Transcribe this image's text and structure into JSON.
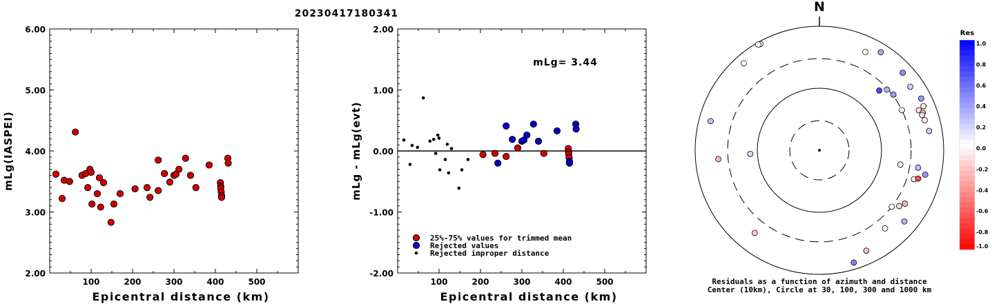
{
  "title": "20230417180341",
  "chart_data": [
    {
      "type": "scatter",
      "xlabel": "Epicentral distance (km)",
      "ylabel": "mLg(IASPEI)",
      "xlim": [
        0,
        600
      ],
      "ylim": [
        2.0,
        6.0
      ],
      "x_ticks": [
        "100",
        "200",
        "300",
        "400",
        "500"
      ],
      "y_ticks": [
        "2.00",
        "3.00",
        "4.00",
        "5.00",
        "6.00"
      ],
      "grid": false,
      "series": [
        {
          "color": "#d40000",
          "points": [
            [
              15,
              3.62
            ],
            [
              30,
              3.22
            ],
            [
              35,
              3.52
            ],
            [
              48,
              3.5
            ],
            [
              62,
              4.31
            ],
            [
              78,
              3.6
            ],
            [
              87,
              3.63
            ],
            [
              92,
              3.4
            ],
            [
              97,
              3.7
            ],
            [
              100,
              3.65
            ],
            [
              102,
              3.13
            ],
            [
              115,
              3.3
            ],
            [
              120,
              3.56
            ],
            [
              123,
              3.08
            ],
            [
              130,
              3.48
            ],
            [
              148,
              2.83
            ],
            [
              155,
              3.13
            ],
            [
              170,
              3.3
            ],
            [
              206,
              3.38
            ],
            [
              235,
              3.4
            ],
            [
              242,
              3.24
            ],
            [
              262,
              3.85
            ],
            [
              262,
              3.35
            ],
            [
              277,
              3.63
            ],
            [
              290,
              3.49
            ],
            [
              300,
              3.6
            ],
            [
              305,
              3.62
            ],
            [
              312,
              3.7
            ],
            [
              328,
              3.88
            ],
            [
              340,
              3.6
            ],
            [
              353,
              3.4
            ],
            [
              385,
              3.77
            ],
            [
              412,
              3.48
            ],
            [
              413,
              3.42
            ],
            [
              413,
              3.39
            ],
            [
              414,
              3.33
            ],
            [
              415,
              3.27
            ],
            [
              415,
              3.24
            ],
            [
              430,
              3.88
            ],
            [
              431,
              3.8
            ]
          ]
        }
      ]
    },
    {
      "type": "scatter",
      "xlabel": "Epicentral distance (km)",
      "ylabel": "mLg - mLg(evt)",
      "xlim": [
        0,
        600
      ],
      "ylim": [
        -2.0,
        2.0
      ],
      "x_ticks": [
        "100",
        "200",
        "300",
        "400",
        "500"
      ],
      "y_ticks": [
        "-2.00",
        "-1.00",
        "0.00",
        "1.00",
        "2.00"
      ],
      "annotation": "mLg= 3.44",
      "legend_position": "bottom-left",
      "reference_line": 0,
      "series": [
        {
          "name": "25%-75% values for trimmed mean",
          "color": "#d40000",
          "marker": "circle",
          "points": [
            [
              206,
              -0.06
            ],
            [
              235,
              -0.04
            ],
            [
              262,
              -0.09
            ],
            [
              290,
              0.05
            ],
            [
              353,
              -0.04
            ],
            [
              412,
              0.04
            ],
            [
              413,
              -0.02
            ],
            [
              413,
              -0.05
            ],
            [
              414,
              -0.11
            ]
          ]
        },
        {
          "name": "Rejected values",
          "color": "#0000cc",
          "marker": "circle",
          "points": [
            [
              242,
              -0.2
            ],
            [
              262,
              0.41
            ],
            [
              277,
              0.19
            ],
            [
              300,
              0.16
            ],
            [
              305,
              0.18
            ],
            [
              312,
              0.26
            ],
            [
              328,
              0.44
            ],
            [
              340,
              0.16
            ],
            [
              385,
              0.33
            ],
            [
              415,
              -0.17
            ],
            [
              415,
              -0.2
            ],
            [
              430,
              0.44
            ],
            [
              431,
              0.36
            ]
          ]
        },
        {
          "name": "Rejected improper distance",
          "color": "#000000",
          "marker": "dot",
          "points": [
            [
              15,
              0.18
            ],
            [
              30,
              -0.22
            ],
            [
              35,
              0.09
            ],
            [
              48,
              0.06
            ],
            [
              62,
              0.87
            ],
            [
              78,
              0.16
            ],
            [
              87,
              0.19
            ],
            [
              92,
              -0.04
            ],
            [
              97,
              0.26
            ],
            [
              100,
              0.21
            ],
            [
              102,
              -0.31
            ],
            [
              115,
              -0.14
            ],
            [
              120,
              0.11
            ],
            [
              123,
              -0.36
            ],
            [
              130,
              0.04
            ],
            [
              148,
              -0.61
            ],
            [
              155,
              -0.31
            ],
            [
              170,
              -0.14
            ]
          ]
        }
      ]
    },
    {
      "type": "polar-scatter",
      "north_label": "N",
      "caption_line1": "Residuals as a function of azimuth and distance",
      "caption_line2": "Center (10km), Circle at 30, 100, 300 and 1000 km",
      "ring_distances_km": [
        30,
        100,
        300,
        1000
      ],
      "colorbar": {
        "title": "Res",
        "ticks": [
          "1.0",
          "0.8",
          "0.6",
          "0.4",
          "0.2",
          "0.0",
          "-0.2",
          "-0.4",
          "-0.6",
          "-0.8",
          "-1.0"
        ],
        "range": [
          -1.0,
          1.0
        ],
        "high_color": "#0000ff",
        "low_color": "#ff0000"
      },
      "points": [
        {
          "azimuth_deg": 331,
          "distance_km": 910,
          "residual": 0.0
        },
        {
          "azimuth_deg": 330,
          "distance_km": 930,
          "residual": 0.0
        },
        {
          "azimuth_deg": 319,
          "distance_km": 720,
          "residual": 0.0
        },
        {
          "azimuth_deg": 25,
          "distance_km": 560,
          "residual": 0.0
        },
        {
          "azimuth_deg": 32,
          "distance_km": 730,
          "residual": 0.35
        },
        {
          "azimuth_deg": 47,
          "distance_km": 680,
          "residual": 0.45
        },
        {
          "azimuth_deg": 55,
          "distance_km": 610,
          "residual": 0.2
        },
        {
          "azimuth_deg": 63,
          "distance_km": 690,
          "residual": 0.4
        },
        {
          "azimuth_deg": 67,
          "distance_km": 660,
          "residual": -0.05
        },
        {
          "azimuth_deg": 68,
          "distance_km": 530,
          "residual": -0.15
        },
        {
          "azimuth_deg": 70,
          "distance_km": 590,
          "residual": -0.25
        },
        {
          "azimuth_deg": 71,
          "distance_km": 560,
          "residual": -0.12
        },
        {
          "azimuth_deg": 74,
          "distance_km": 580,
          "residual": -0.05
        },
        {
          "azimuth_deg": 80,
          "distance_km": 620,
          "residual": 0.2
        },
        {
          "azimuth_deg": 64,
          "distance_km": 300,
          "residual": 0.0
        },
        {
          "azimuth_deg": 48,
          "distance_km": 290,
          "residual": 0.3
        },
        {
          "azimuth_deg": 45,
          "distance_km": 230,
          "residual": 0.7
        },
        {
          "azimuth_deg": 53,
          "distance_km": 310,
          "residual": 0.4
        },
        {
          "azimuth_deg": 285,
          "distance_km": 650,
          "residual": 0.25
        },
        {
          "azimuth_deg": 265,
          "distance_km": 430,
          "residual": -0.3
        },
        {
          "azimuth_deg": 267,
          "distance_km": 130,
          "residual": 0.15
        },
        {
          "azimuth_deg": 100,
          "distance_km": 210,
          "residual": -0.1
        },
        {
          "azimuth_deg": 100,
          "distance_km": 410,
          "residual": 0.25
        },
        {
          "azimuth_deg": 107,
          "distance_km": 390,
          "residual": 0.05
        },
        {
          "azimuth_deg": 106,
          "distance_km": 450,
          "residual": -0.7
        },
        {
          "azimuth_deg": 103,
          "distance_km": 560,
          "residual": 0.4
        },
        {
          "azimuth_deg": 128,
          "distance_km": 300,
          "residual": 0.0
        },
        {
          "azimuth_deg": 125,
          "distance_km": 370,
          "residual": -0.15
        },
        {
          "azimuth_deg": 122,
          "distance_km": 420,
          "residual": -0.3
        },
        {
          "azimuth_deg": 140,
          "distance_km": 440,
          "residual": 0.0
        },
        {
          "azimuth_deg": 130,
          "distance_km": 610,
          "residual": 0.3
        },
        {
          "azimuth_deg": 218,
          "distance_km": 490,
          "residual": -0.2
        },
        {
          "azimuth_deg": 155,
          "distance_km": 610,
          "residual": -0.25
        },
        {
          "azimuth_deg": 163,
          "distance_km": 780,
          "residual": 0.5
        }
      ]
    }
  ]
}
